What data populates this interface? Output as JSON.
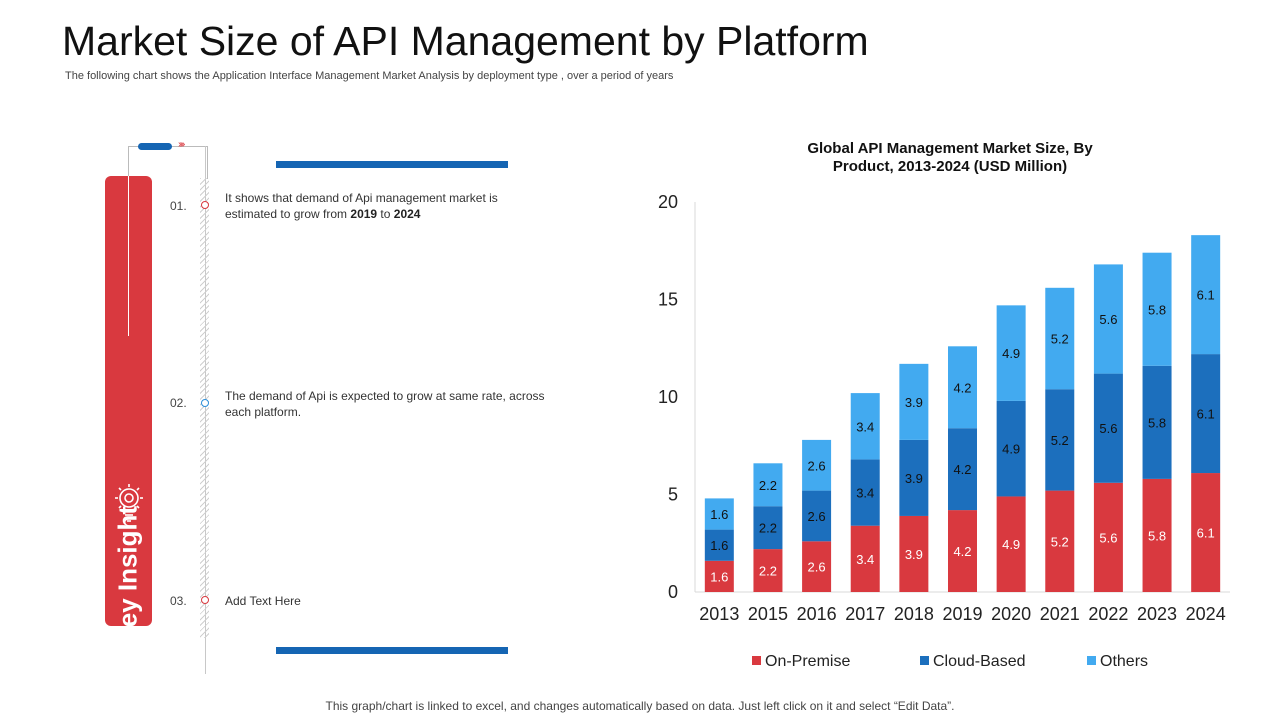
{
  "page": {
    "title": "Market Size of API Management by Platform",
    "subtitle": "The following chart shows the Application Interface Management Market Analysis by deployment type , over a period of years",
    "footer": "This graph/chart is linked to excel, and changes automatically based on data. Just left click on it and select “Edit Data”."
  },
  "insights": {
    "label": "Key Insight",
    "chevrons": "››››",
    "items": [
      {
        "num": "01.",
        "text_before": "It shows that demand of Api management  market is estimated to grow from ",
        "year_from": "2019",
        "text_mid": " to ",
        "year_to": "2024",
        "dot_color": "#d9393f"
      },
      {
        "num": "02.",
        "text": "The demand of Api is expected to grow at same rate, across each platform.",
        "dot_color": "#2d8fd9"
      },
      {
        "num": "03.",
        "text": "Add Text Here",
        "dot_color": "#d9393f"
      }
    ]
  },
  "colors": {
    "accent_red": "#d9393f",
    "accent_blue": "#1565b3"
  },
  "chart_data": {
    "type": "bar",
    "stacked": true,
    "title": "Global API Management Market Size, By Product, 2013-2024 (USD Million)",
    "title_lines": [
      "Global API Management Market Size, By",
      "Product, 2013-2024 (USD Million)"
    ],
    "categories": [
      "2013",
      "2015",
      "2016",
      "2017",
      "2018",
      "2019",
      "2020",
      "2021",
      "2022",
      "2023",
      "2024"
    ],
    "series": [
      {
        "name": "On-Premise",
        "color": "#d9393f",
        "label_color": "#ffffff",
        "values": [
          1.6,
          2.2,
          2.6,
          3.4,
          3.9,
          4.2,
          4.9,
          5.2,
          5.6,
          5.8,
          6.1
        ]
      },
      {
        "name": "Cloud-Based",
        "color": "#1c6fbd",
        "label_color": "#111111",
        "values": [
          1.6,
          2.2,
          2.6,
          3.4,
          3.9,
          4.2,
          4.9,
          5.2,
          5.6,
          5.8,
          6.1
        ]
      },
      {
        "name": "Others",
        "color": "#42aaf0",
        "label_color": "#111111",
        "values": [
          1.6,
          2.2,
          2.6,
          3.4,
          3.9,
          4.2,
          4.9,
          5.2,
          5.6,
          5.8,
          6.1
        ]
      }
    ],
    "ylim": [
      0,
      20
    ],
    "yticks": [
      0,
      5,
      10,
      15,
      20
    ],
    "xlabel": "",
    "ylabel": "",
    "legend_position": "bottom",
    "grid": false
  }
}
